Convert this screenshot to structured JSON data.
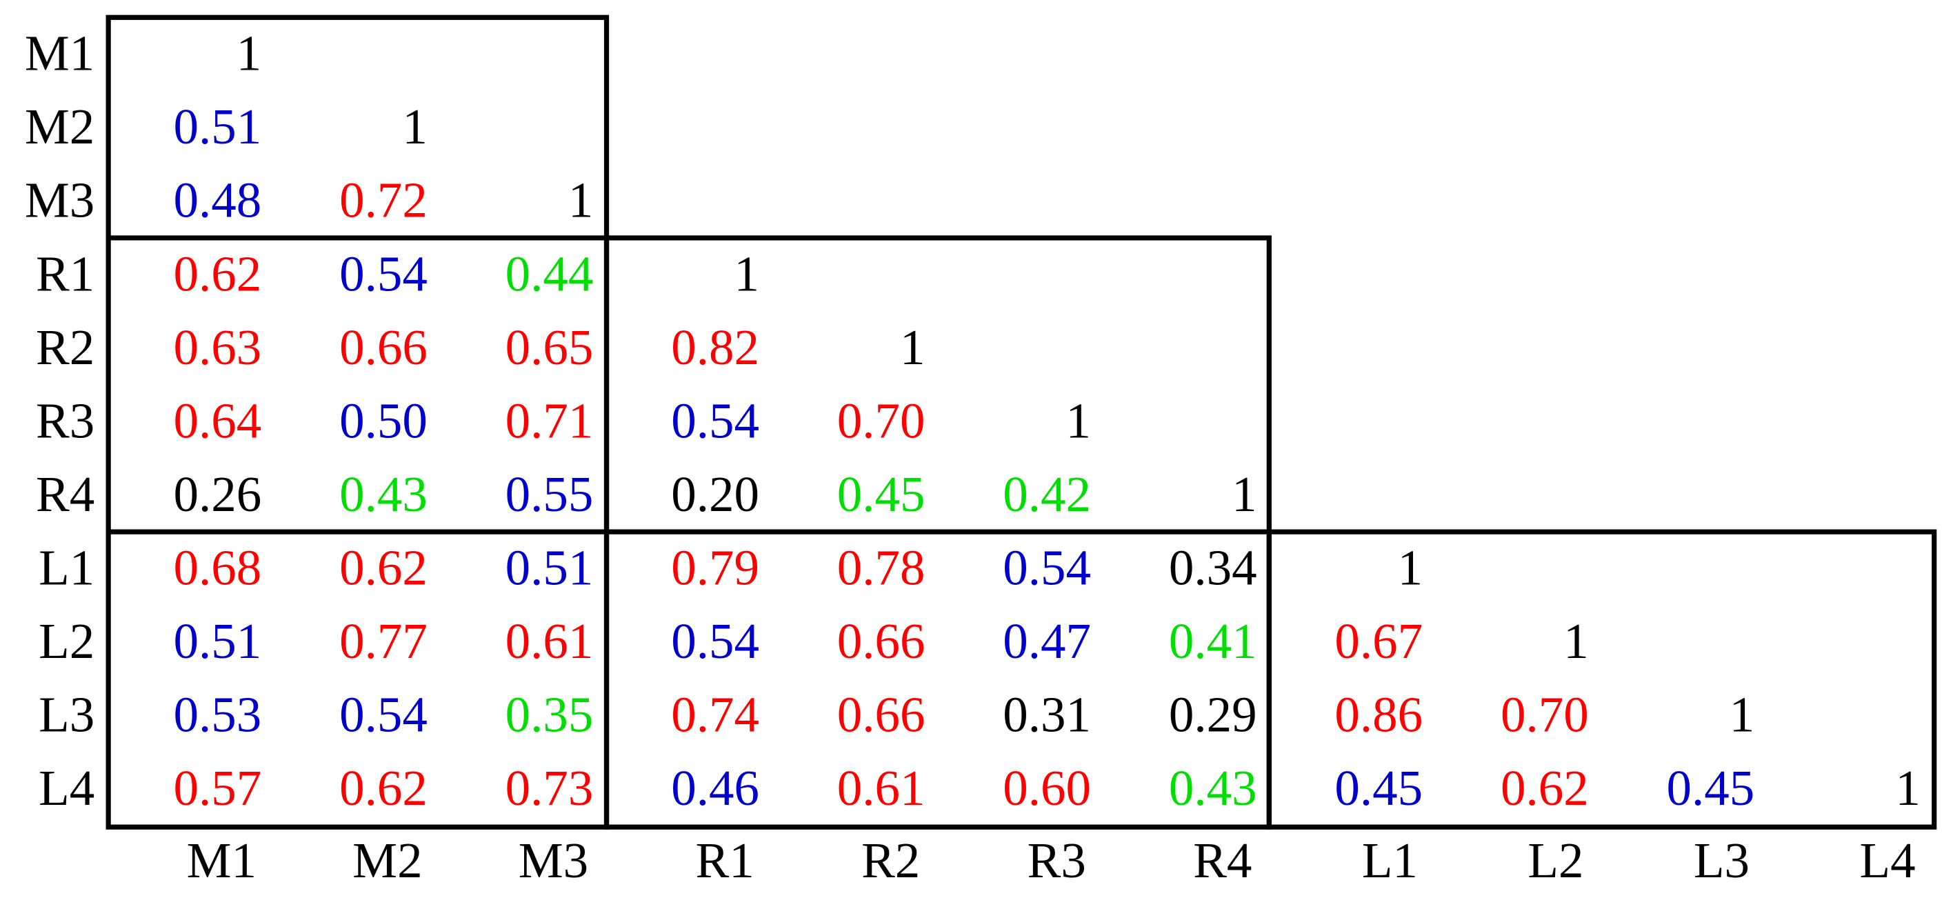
{
  "table": {
    "row_labels": [
      "M1",
      "M2",
      "M3",
      "R1",
      "R2",
      "R3",
      "R4",
      "L1",
      "L2",
      "L3",
      "L4"
    ],
    "column_labels": [
      "M1",
      "M2",
      "M3",
      "R1",
      "R2",
      "R3",
      "R4",
      "L1",
      "L2",
      "L3",
      "L4"
    ],
    "rows": [
      [
        "1"
      ],
      [
        "0.51",
        "1"
      ],
      [
        "0.48",
        "0.72",
        "1"
      ],
      [
        "0.62",
        "0.54",
        "0.44",
        "1"
      ],
      [
        "0.63",
        "0.66",
        "0.65",
        "0.82",
        "1"
      ],
      [
        "0.64",
        "0.50",
        "0.71",
        "0.54",
        "0.70",
        "1"
      ],
      [
        "0.26",
        "0.43",
        "0.55",
        "0.20",
        "0.45",
        "0.42",
        "1"
      ],
      [
        "0.68",
        "0.62",
        "0.51",
        "0.79",
        "0.78",
        "0.54",
        "0.34",
        "1"
      ],
      [
        "0.51",
        "0.77",
        "0.61",
        "0.54",
        "0.66",
        "0.47",
        "0.41",
        "0.67",
        "1"
      ],
      [
        "0.53",
        "0.54",
        "0.35",
        "0.74",
        "0.66",
        "0.31",
        "0.29",
        "0.86",
        "0.70",
        "1"
      ],
      [
        "0.57",
        "0.62",
        "0.73",
        "0.46",
        "0.61",
        "0.60",
        "0.43",
        "0.45",
        "0.62",
        "0.45",
        "1"
      ]
    ],
    "cell_colors": [
      [
        "#000000"
      ],
      [
        "#0000cc",
        "#000000"
      ],
      [
        "#0000cc",
        "#ff0000",
        "#000000"
      ],
      [
        "#ff0000",
        "#0000cc",
        "#00dd00",
        "#000000"
      ],
      [
        "#ff0000",
        "#ff0000",
        "#ff0000",
        "#ff0000",
        "#000000"
      ],
      [
        "#ff0000",
        "#0000cc",
        "#ff0000",
        "#0000cc",
        "#ff0000",
        "#000000"
      ],
      [
        "#000000",
        "#00dd00",
        "#0000cc",
        "#000000",
        "#00dd00",
        "#00dd00",
        "#000000"
      ],
      [
        "#ff0000",
        "#ff0000",
        "#0000cc",
        "#ff0000",
        "#ff0000",
        "#0000cc",
        "#000000",
        "#000000"
      ],
      [
        "#0000cc",
        "#ff0000",
        "#ff0000",
        "#0000cc",
        "#ff0000",
        "#0000cc",
        "#00dd00",
        "#ff0000",
        "#000000"
      ],
      [
        "#0000cc",
        "#0000cc",
        "#00dd00",
        "#ff0000",
        "#ff0000",
        "#000000",
        "#000000",
        "#ff0000",
        "#ff0000",
        "#000000"
      ],
      [
        "#ff0000",
        "#ff0000",
        "#ff0000",
        "#0000cc",
        "#ff0000",
        "#ff0000",
        "#00dd00",
        "#0000cc",
        "#ff0000",
        "#0000cc",
        "#000000"
      ]
    ]
  }
}
